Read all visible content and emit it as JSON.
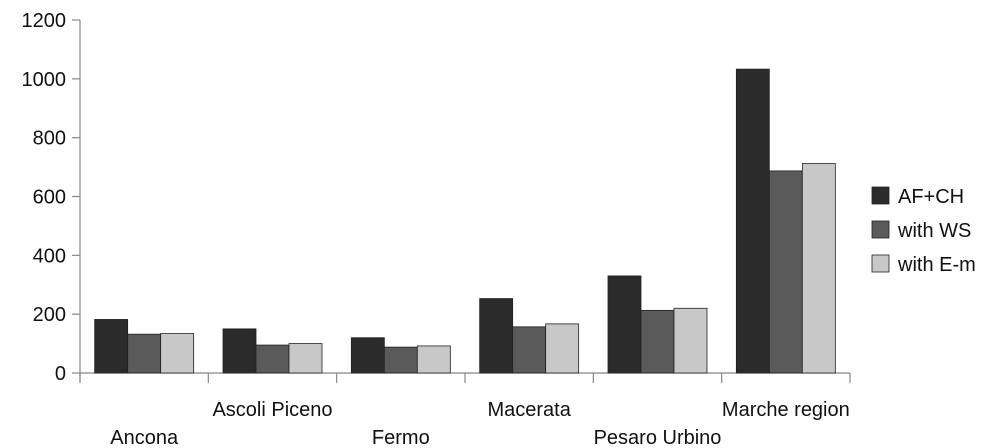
{
  "chart_data": {
    "type": "bar",
    "categories": [
      "Ancona",
      "Ascoli Piceno",
      "Fermo",
      "Macerata",
      "Pesaro Urbino",
      "Marche region"
    ],
    "series": [
      {
        "name": "AF+CH",
        "values": [
          182,
          150,
          120,
          253,
          330,
          1033
        ],
        "color": "#2b2b2b"
      },
      {
        "name": "with WS",
        "values": [
          132,
          95,
          88,
          157,
          213,
          687
        ],
        "color": "#5a5a5a"
      },
      {
        "name": "with E-m",
        "values": [
          134,
          100,
          92,
          167,
          220,
          712
        ],
        "color": "#c8c8c8"
      }
    ],
    "title": "",
    "xlabel": "",
    "ylabel": "",
    "ylim": [
      0,
      1200
    ],
    "yticks": [
      "0",
      "200",
      "400",
      "600",
      "800",
      "1000",
      "1200"
    ],
    "grid": false,
    "legend_position": "right"
  }
}
